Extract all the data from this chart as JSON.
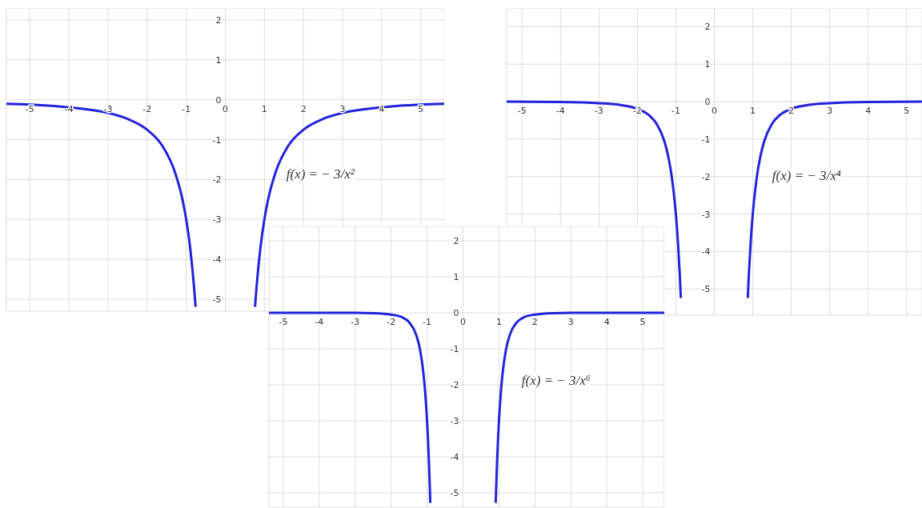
{
  "chart_data": [
    {
      "type": "line",
      "annotations": [
        "f(x) = − 3/x²"
      ],
      "xlim": [
        -5.6,
        5.6
      ],
      "ylim": [
        -5.3,
        2.3
      ],
      "xticks": [
        -5,
        -4,
        -3,
        -2,
        -1,
        0,
        1,
        2,
        3,
        4,
        5
      ],
      "yticks": [
        -5,
        -4,
        -3,
        -2,
        -1,
        0,
        1,
        2
      ],
      "grid": true,
      "legend": false,
      "marker": "none",
      "line_style": "solid",
      "series": [
        {
          "color": "#2222dd",
          "x": [
            -5.6,
            -5,
            -4,
            -3,
            -2.5,
            -2,
            -1.6,
            -1.3,
            -1.1,
            -1,
            -0.9,
            -0.8,
            -0.76,
            0,
            0.76,
            0.8,
            0.9,
            1,
            1.1,
            1.3,
            1.6,
            2,
            2.5,
            3,
            4,
            5,
            5.6
          ],
          "values": [
            -0.1,
            -0.12,
            -0.19,
            -0.33,
            -0.48,
            -0.75,
            -1.17,
            -1.78,
            -2.48,
            -3,
            -3.7,
            -4.69,
            -5.19,
            null,
            -5.19,
            -4.69,
            -3.7,
            -3,
            -2.48,
            -1.78,
            -1.17,
            -0.75,
            -0.48,
            -0.33,
            -0.19,
            -0.12,
            -0.1
          ]
        }
      ]
    },
    {
      "type": "line",
      "annotations": [
        "f(x) = − 3/x⁴"
      ],
      "xlim": [
        -5.4,
        5.4
      ],
      "ylim": [
        -5.7,
        2.5
      ],
      "xticks": [
        -5,
        -4,
        -3,
        -2,
        -1,
        0,
        1,
        2,
        3,
        4,
        5
      ],
      "yticks": [
        -5,
        -4,
        -3,
        -2,
        -1,
        0,
        1,
        2
      ],
      "grid": true,
      "legend": false,
      "marker": "none",
      "line_style": "solid",
      "series": [
        {
          "color": "#2222dd",
          "x": [
            -5.4,
            -4,
            -3,
            -2.5,
            -2,
            -1.7,
            -1.5,
            -1.3,
            -1.2,
            -1.1,
            -1,
            -0.95,
            -0.9,
            -0.87,
            0,
            0.87,
            0.9,
            0.95,
            1,
            1.1,
            1.2,
            1.3,
            1.5,
            1.7,
            2,
            2.5,
            3,
            4,
            5.4
          ],
          "values": [
            0,
            -0.01,
            -0.04,
            -0.08,
            -0.19,
            -0.36,
            -0.59,
            -1.05,
            -1.45,
            -2.05,
            -3,
            -3.68,
            -4.57,
            -5.24,
            null,
            -5.24,
            -4.57,
            -3.68,
            -3,
            -2.05,
            -1.45,
            -1.05,
            -0.59,
            -0.36,
            -0.19,
            -0.08,
            -0.04,
            -0.01,
            0
          ]
        }
      ]
    },
    {
      "type": "line",
      "annotations": [
        "f(x) = − 3/x⁶"
      ],
      "xlim": [
        -5.4,
        5.6
      ],
      "ylim": [
        -5.4,
        2.4
      ],
      "xticks": [
        -5,
        -4,
        -3,
        -2,
        -1,
        0,
        1,
        2,
        3,
        4,
        5
      ],
      "yticks": [
        -5,
        -4,
        -3,
        -2,
        -1,
        0,
        1,
        2
      ],
      "grid": true,
      "legend": false,
      "marker": "none",
      "line_style": "solid",
      "series": [
        {
          "color": "#2222dd",
          "x": [
            -5.4,
            -3,
            -2.5,
            -2,
            -1.7,
            -1.5,
            -1.3,
            -1.2,
            -1.1,
            -1.05,
            -1,
            -0.95,
            -0.92,
            -0.91,
            0,
            0.91,
            0.92,
            0.95,
            1,
            1.05,
            1.1,
            1.2,
            1.3,
            1.5,
            1.7,
            2,
            2.5,
            3,
            5.6
          ],
          "values": [
            0,
            0,
            -0.01,
            -0.05,
            -0.12,
            -0.26,
            -0.62,
            -1,
            -1.69,
            -2.24,
            -3,
            -4.08,
            -4.95,
            -5.28,
            null,
            -5.28,
            -4.95,
            -4.08,
            -3,
            -2.24,
            -1.69,
            -1,
            -0.62,
            -0.26,
            -0.12,
            -0.05,
            -0.01,
            0,
            0
          ]
        }
      ]
    }
  ]
}
